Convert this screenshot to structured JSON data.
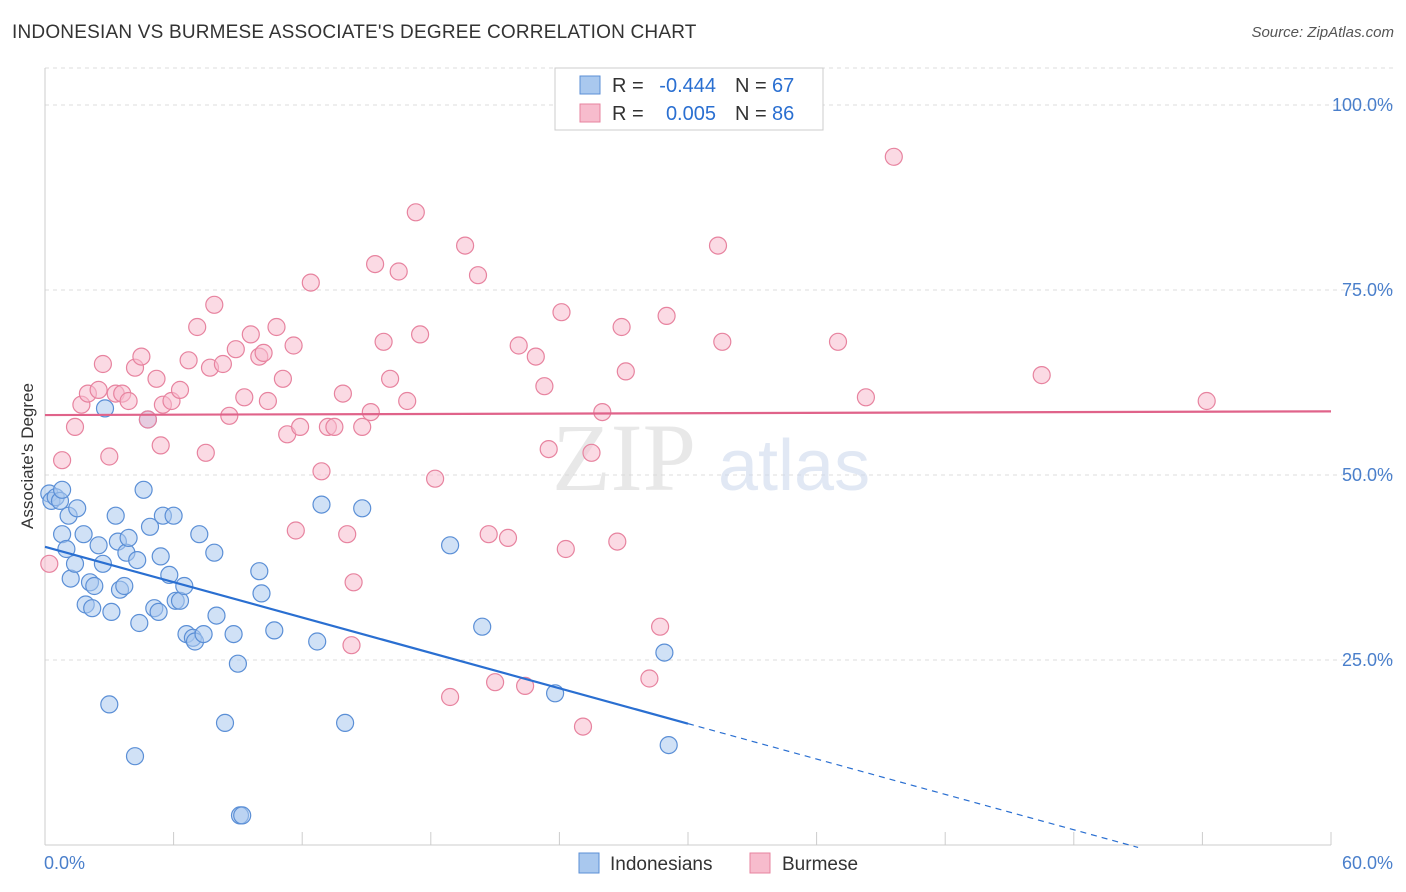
{
  "title": "INDONESIAN VS BURMESE ASSOCIATE'S DEGREE CORRELATION CHART",
  "source": "Source: ZipAtlas.com",
  "watermark": {
    "zip": "ZIP",
    "atlas": "atlas"
  },
  "colors": {
    "indonesians_fill": "#a9c8ee",
    "indonesians_stroke": "#5b8fd6",
    "indonesians_line": "#2a6fd1",
    "burmese_fill": "#f7bccd",
    "burmese_stroke": "#e7839f",
    "burmese_line": "#e0638a",
    "axis_text": "#4a7fcb",
    "grid": "#dddddd"
  },
  "stats": [
    {
      "r_label": "R =",
      "r_value": "-0.444",
      "n_label": "N =",
      "n_value": "67"
    },
    {
      "r_label": "R =",
      "r_value": "0.005",
      "n_label": "N =",
      "n_value": "86"
    }
  ],
  "chart_data": {
    "type": "scatter",
    "xlabel": "",
    "ylabel": "Associate's Degree",
    "xlim": [
      0,
      60
    ],
    "ylim": [
      0,
      105
    ],
    "x_tick_labels": [
      "0.0%",
      "60.0%"
    ],
    "y_ticks": [
      25,
      50,
      75,
      100
    ],
    "y_tick_labels": [
      "25.0%",
      "50.0%",
      "75.0%",
      "100.0%"
    ],
    "grid": true,
    "legend_position": "bottom",
    "series": [
      {
        "name": "Indonesians",
        "trend": {
          "x0": 0,
          "y0": 40.3,
          "x1": 30,
          "y1": 16.4,
          "dash_to_x": 51
        },
        "points": [
          [
            0.2,
            47.5
          ],
          [
            0.3,
            46.5
          ],
          [
            0.5,
            47
          ],
          [
            0.7,
            46.5
          ],
          [
            0.8,
            48
          ],
          [
            0.8,
            42
          ],
          [
            1.0,
            40
          ],
          [
            1.1,
            44.5
          ],
          [
            1.2,
            36
          ],
          [
            1.4,
            38
          ],
          [
            1.5,
            45.5
          ],
          [
            1.8,
            42
          ],
          [
            1.9,
            32.5
          ],
          [
            2.1,
            35.5
          ],
          [
            2.2,
            32
          ],
          [
            2.3,
            35
          ],
          [
            2.5,
            40.5
          ],
          [
            2.7,
            38
          ],
          [
            2.8,
            59
          ],
          [
            3.1,
            31.5
          ],
          [
            3.3,
            44.5
          ],
          [
            3.4,
            41
          ],
          [
            3.5,
            34.5
          ],
          [
            3.7,
            35
          ],
          [
            3.8,
            39.5
          ],
          [
            3.9,
            41.5
          ],
          [
            4.3,
            38.5
          ],
          [
            4.4,
            30
          ],
          [
            4.6,
            48
          ],
          [
            4.8,
            57.5
          ],
          [
            4.9,
            43
          ],
          [
            5.1,
            32
          ],
          [
            5.3,
            31.5
          ],
          [
            5.4,
            39
          ],
          [
            5.5,
            44.5
          ],
          [
            5.8,
            36.5
          ],
          [
            6.0,
            44.5
          ],
          [
            6.1,
            33
          ],
          [
            6.3,
            33
          ],
          [
            6.5,
            35
          ],
          [
            6.6,
            28.5
          ],
          [
            6.9,
            28
          ],
          [
            7.0,
            27.5
          ],
          [
            7.2,
            42
          ],
          [
            7.4,
            28.5
          ],
          [
            7.9,
            39.5
          ],
          [
            8.0,
            31
          ],
          [
            8.8,
            28.5
          ],
          [
            9.0,
            24.5
          ],
          [
            8.4,
            16.5
          ],
          [
            9.1,
            4
          ],
          [
            9.2,
            4
          ],
          [
            10.0,
            37
          ],
          [
            10.1,
            34
          ],
          [
            10.7,
            29
          ],
          [
            12.7,
            27.5
          ],
          [
            12.9,
            46
          ],
          [
            14.0,
            16.5
          ],
          [
            14.8,
            45.5
          ],
          [
            18.9,
            40.5
          ],
          [
            20.4,
            29.5
          ],
          [
            23.8,
            20.5
          ],
          [
            28.9,
            26
          ],
          [
            29.1,
            13.5
          ],
          [
            3.0,
            19
          ],
          [
            4.2,
            12
          ]
        ]
      },
      {
        "name": "Burmese",
        "trend": {
          "x0": 0,
          "y0": 58.1,
          "x1": 60,
          "y1": 58.6
        },
        "points": [
          [
            0.2,
            38
          ],
          [
            0.8,
            52
          ],
          [
            1.4,
            56.5
          ],
          [
            1.7,
            59.5
          ],
          [
            2.0,
            61
          ],
          [
            2.5,
            61.5
          ],
          [
            2.7,
            65
          ],
          [
            3.0,
            52.5
          ],
          [
            3.3,
            61
          ],
          [
            3.6,
            61
          ],
          [
            3.9,
            60
          ],
          [
            4.2,
            64.5
          ],
          [
            4.5,
            66
          ],
          [
            4.8,
            57.5
          ],
          [
            5.2,
            63
          ],
          [
            5.4,
            54
          ],
          [
            5.5,
            59.5
          ],
          [
            5.9,
            60
          ],
          [
            6.3,
            61.5
          ],
          [
            6.7,
            65.5
          ],
          [
            7.1,
            70
          ],
          [
            7.5,
            53
          ],
          [
            7.7,
            64.5
          ],
          [
            7.9,
            73
          ],
          [
            8.3,
            65
          ],
          [
            8.6,
            58
          ],
          [
            8.9,
            67
          ],
          [
            9.3,
            60.5
          ],
          [
            9.6,
            69
          ],
          [
            10.0,
            66
          ],
          [
            10.2,
            66.5
          ],
          [
            10.4,
            60
          ],
          [
            10.8,
            70
          ],
          [
            11.1,
            63
          ],
          [
            11.3,
            55.5
          ],
          [
            11.6,
            67.5
          ],
          [
            11.7,
            42.5
          ],
          [
            11.9,
            56.5
          ],
          [
            12.4,
            76
          ],
          [
            12.9,
            50.5
          ],
          [
            13.2,
            56.5
          ],
          [
            13.5,
            56.5
          ],
          [
            13.9,
            61
          ],
          [
            14.1,
            42
          ],
          [
            14.3,
            27
          ],
          [
            14.4,
            35.5
          ],
          [
            14.8,
            56.5
          ],
          [
            15.2,
            58.5
          ],
          [
            15.4,
            78.5
          ],
          [
            15.8,
            68
          ],
          [
            16.1,
            63
          ],
          [
            16.5,
            77.5
          ],
          [
            16.9,
            60
          ],
          [
            17.3,
            85.5
          ],
          [
            17.5,
            69
          ],
          [
            18.2,
            49.5
          ],
          [
            18.9,
            20
          ],
          [
            19.6,
            81
          ],
          [
            20.2,
            77
          ],
          [
            20.7,
            42
          ],
          [
            21.0,
            22
          ],
          [
            21.6,
            41.5
          ],
          [
            22.1,
            67.5
          ],
          [
            22.4,
            21.5
          ],
          [
            22.9,
            66
          ],
          [
            23.3,
            62
          ],
          [
            23.5,
            53.5
          ],
          [
            24.1,
            72
          ],
          [
            24.3,
            40
          ],
          [
            25.1,
            16
          ],
          [
            25.5,
            53
          ],
          [
            26.0,
            58.5
          ],
          [
            26.7,
            41
          ],
          [
            26.9,
            70
          ],
          [
            27.1,
            64
          ],
          [
            28.2,
            22.5
          ],
          [
            28.7,
            29.5
          ],
          [
            29.0,
            71.5
          ],
          [
            31.4,
            81
          ],
          [
            31.6,
            68
          ],
          [
            37.0,
            68
          ],
          [
            38.3,
            60.5
          ],
          [
            39.6,
            93
          ],
          [
            46.5,
            63.5
          ],
          [
            54.2,
            60
          ]
        ]
      }
    ]
  }
}
